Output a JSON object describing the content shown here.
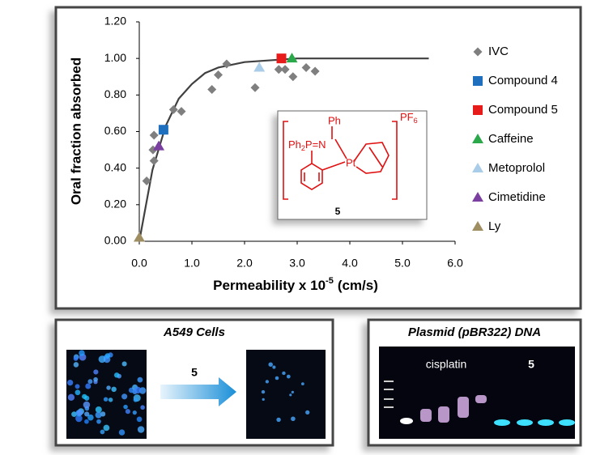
{
  "chart_data": {
    "type": "scatter",
    "x_label": [
      "Permeability x 10",
      "-5",
      "(cm/s)"
    ],
    "y_label": "Oral fraction absorbed",
    "xlim": [
      0,
      6
    ],
    "ylim": [
      0,
      1.2
    ],
    "xticks": [
      {
        "value": 0,
        "label": "0.0"
      },
      {
        "value": 1,
        "label": "1.0"
      },
      {
        "value": 2,
        "label": "2.0"
      },
      {
        "value": 3,
        "label": "3.0"
      },
      {
        "value": 4,
        "label": "4.0"
      },
      {
        "value": 5,
        "label": "5.0"
      },
      {
        "value": 6,
        "label": "6.0"
      }
    ],
    "yticks": [
      {
        "value": 0,
        "label": "0.00"
      },
      {
        "value": 0.2,
        "label": "0.20"
      },
      {
        "value": 0.4,
        "label": "0.40"
      },
      {
        "value": 0.6,
        "label": "0.60"
      },
      {
        "value": 0.8,
        "label": "0.80"
      },
      {
        "value": 1,
        "label": "1.00"
      },
      {
        "value": 1.2,
        "label": "1.20"
      }
    ],
    "legend_position": "right",
    "series": [
      {
        "name": "IVC",
        "marker": "diamond",
        "color": "#7f7f7f",
        "x": [
          0.14,
          0.28,
          0.26,
          0.28,
          0.65,
          0.8,
          1.38,
          1.5,
          1.66,
          2.2,
          2.65,
          2.77,
          2.92,
          3.17,
          3.34
        ],
        "values": [
          0.33,
          0.44,
          0.5,
          0.58,
          0.72,
          0.71,
          0.83,
          0.91,
          0.97,
          0.84,
          0.94,
          0.94,
          0.9,
          0.95,
          0.93
        ]
      },
      {
        "name": "Compound 4",
        "marker": "square",
        "color": "#1f6fbf",
        "x": [
          0.46
        ],
        "values": [
          0.61
        ]
      },
      {
        "name": "Compound 5",
        "marker": "square",
        "color": "#e81b1b",
        "x": [
          2.7
        ],
        "values": [
          1.0
        ]
      },
      {
        "name": "Caffeine",
        "marker": "triangle",
        "color": "#2aa84a",
        "x": [
          2.9
        ],
        "values": [
          1.0
        ]
      },
      {
        "name": "Metoprolol",
        "marker": "triangle",
        "color": "#a9cde8",
        "x": [
          2.28
        ],
        "values": [
          0.95
        ]
      },
      {
        "name": "Cimetidine",
        "marker": "triangle",
        "color": "#7b3fa0",
        "x": [
          0.37
        ],
        "values": [
          0.52
        ]
      },
      {
        "name": "Ly",
        "marker": "triangle",
        "color": "#a08e63",
        "x": [
          0.0
        ],
        "values": [
          0.02
        ]
      }
    ],
    "curve": {
      "color": "#404040",
      "x": [
        0,
        0.25,
        0.5,
        0.75,
        1,
        1.25,
        1.5,
        2,
        2.5,
        3,
        4,
        5.5
      ],
      "values": [
        0,
        0.39,
        0.63,
        0.78,
        0.86,
        0.92,
        0.95,
        0.98,
        0.99,
        1.0,
        1.0,
        1.0
      ]
    }
  },
  "inset": {
    "ph": "Ph",
    "ph2p": [
      "Ph",
      "2",
      "P=N"
    ],
    "pt": "Pt",
    "pf6": [
      "PF",
      "6"
    ],
    "label": "5"
  },
  "panels": [
    {
      "title": "A549 Cells",
      "arrow_label": "5"
    },
    {
      "title": "Plasmid (pBR322) DNA",
      "lanes": [
        "cisplatin",
        "5"
      ]
    }
  ]
}
